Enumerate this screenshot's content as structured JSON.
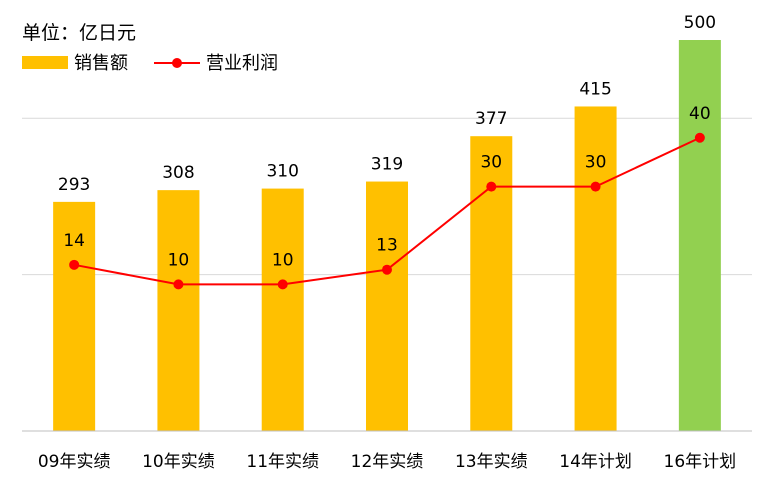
{
  "unit_label": "单位：亿日元",
  "colors": {
    "bar": "#FFC000",
    "bar_highlight": "#92D050",
    "line": "#FF0000",
    "grid": "#D9D9D9",
    "axis": "#BFBFBF"
  },
  "chart_data": {
    "type": "bar",
    "categories": [
      "09年实绩",
      "10年实绩",
      "11年实绩",
      "12年实绩",
      "13年实绩",
      "14年计划",
      "16年计划"
    ],
    "series": [
      {
        "name": "销售额",
        "type": "bar",
        "values": [
          293,
          308,
          310,
          319,
          377,
          415,
          500
        ],
        "highlight_index": 6
      },
      {
        "name": "营业利润",
        "type": "line",
        "values": [
          14,
          10,
          10,
          13,
          30,
          30,
          40
        ]
      }
    ],
    "ylim_bar": [
      0,
      500
    ],
    "ylim_line": [
      -20,
      60
    ],
    "grid": true,
    "legend": "top-left"
  }
}
